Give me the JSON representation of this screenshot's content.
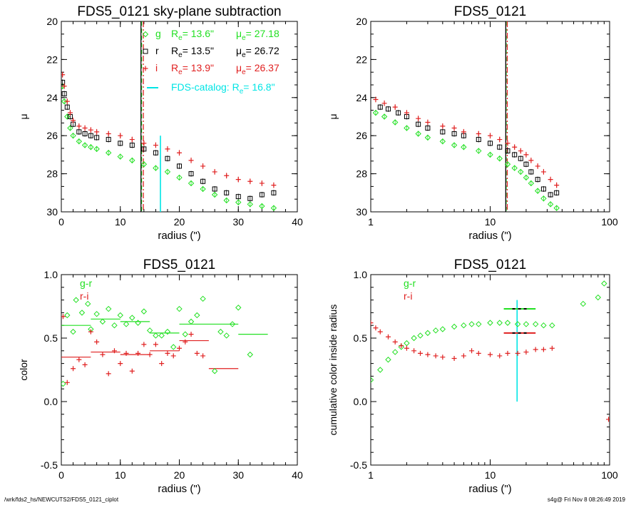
{
  "footer": {
    "left": "/wrk/fds2_hs/NEWCUTS2/FDS5_0121_ciplot",
    "right": "s4g@  Fri Nov  8 08:26:49 2019"
  },
  "colors": {
    "g": "#22e022",
    "r": "#000000",
    "i": "#e02020",
    "catalog": "#00e5e5"
  },
  "chart_data": [
    {
      "id": "panel1",
      "type": "scatter",
      "title": "FDS5_0121 sky-plane subtraction",
      "xlabel": "radius (\")",
      "ylabel": "μ",
      "xlim": [
        0,
        40
      ],
      "ylim": [
        30,
        20
      ],
      "xscale": "linear",
      "xticks": [
        0,
        10,
        20,
        30,
        40
      ],
      "yticks": [
        20,
        22,
        24,
        26,
        28,
        30
      ],
      "legend": [
        {
          "band": "g",
          "marker": "diamond",
          "Re": "13.6\"",
          "mue": "27.18"
        },
        {
          "band": "r",
          "marker": "square",
          "Re": "13.5\"",
          "mue": "26.72"
        },
        {
          "band": "i",
          "marker": "plus",
          "Re": "13.9\"",
          "mue": "26.37"
        }
      ],
      "catalog_label": "FDS-catalog: R",
      "catalog_value": "16.8\"",
      "vlines": [
        {
          "band": "g",
          "x": 13.6,
          "style": "dash"
        },
        {
          "band": "r",
          "x": 13.5,
          "style": "solid"
        },
        {
          "band": "i",
          "x": 13.9,
          "style": "dashdot"
        }
      ],
      "catalog_line": {
        "x": 16.8,
        "y": [
          30,
          26.0
        ]
      },
      "series": [
        {
          "band": "g",
          "x": [
            0.2,
            0.5,
            1,
            1.5,
            2,
            3,
            4,
            5,
            6,
            8,
            10,
            12,
            14,
            16,
            18,
            20,
            22,
            24,
            26,
            28,
            30,
            32,
            34,
            36
          ],
          "y": [
            23.4,
            24.2,
            25.0,
            25.6,
            26.0,
            26.3,
            26.5,
            26.6,
            26.7,
            26.9,
            27.1,
            27.3,
            27.5,
            27.7,
            27.9,
            28.2,
            28.5,
            28.8,
            29.1,
            29.4,
            29.5,
            29.6,
            29.7,
            29.8
          ]
        },
        {
          "band": "r",
          "x": [
            0.2,
            0.5,
            1,
            1.5,
            2,
            3,
            4,
            5,
            6,
            8,
            10,
            12,
            14,
            16,
            18,
            20,
            22,
            24,
            26,
            28,
            30,
            32,
            34,
            36
          ],
          "y": [
            23.2,
            23.8,
            24.5,
            25.0,
            25.4,
            25.8,
            25.9,
            26.0,
            26.1,
            26.2,
            26.4,
            26.5,
            26.7,
            26.9,
            27.2,
            27.6,
            28.0,
            28.4,
            28.8,
            29.0,
            29.2,
            29.3,
            29.1,
            29.0
          ]
        },
        {
          "band": "i",
          "x": [
            0.2,
            0.5,
            1,
            1.5,
            2,
            3,
            4,
            5,
            6,
            8,
            10,
            12,
            14,
            16,
            18,
            20,
            22,
            24,
            26,
            28,
            30,
            32,
            34,
            36
          ],
          "y": [
            22.8,
            23.4,
            24.2,
            24.8,
            25.2,
            25.5,
            25.6,
            25.7,
            25.8,
            25.9,
            26.0,
            26.2,
            26.4,
            26.5,
            26.7,
            26.9,
            27.3,
            27.6,
            27.9,
            28.1,
            28.3,
            28.4,
            28.5,
            28.6
          ]
        }
      ]
    },
    {
      "id": "panel2",
      "type": "scatter",
      "title": "FDS5_0121",
      "xlabel": "radius (\")",
      "ylabel": "μ",
      "xlim": [
        1,
        100
      ],
      "ylim": [
        30,
        20
      ],
      "xscale": "log",
      "xticks": [
        1,
        10,
        100
      ],
      "yticks": [
        20,
        22,
        24,
        26,
        28,
        30
      ],
      "vlines": [
        {
          "band": "g",
          "x": 13.6,
          "style": "dash"
        },
        {
          "band": "r",
          "x": 13.5,
          "style": "solid"
        },
        {
          "band": "i",
          "x": 13.9,
          "style": "dashdot"
        }
      ],
      "series": [
        {
          "band": "g",
          "x": [
            1.1,
            1.3,
            1.6,
            2,
            2.5,
            3,
            4,
            5,
            6,
            8,
            10,
            12,
            14,
            16,
            18,
            20,
            22,
            25,
            28,
            32,
            36
          ],
          "y": [
            24.8,
            25.0,
            25.3,
            25.6,
            25.9,
            26.1,
            26.3,
            26.5,
            26.6,
            26.8,
            27.0,
            27.2,
            27.5,
            27.7,
            27.9,
            28.2,
            28.5,
            28.9,
            29.3,
            29.6,
            29.8
          ]
        },
        {
          "band": "r",
          "x": [
            1.2,
            1.4,
            1.7,
            2,
            2.5,
            3,
            4,
            5,
            6,
            8,
            10,
            12,
            14,
            16,
            18,
            20,
            22,
            25,
            28,
            32,
            36
          ],
          "y": [
            24.5,
            24.6,
            24.8,
            25.0,
            25.4,
            25.6,
            25.8,
            25.9,
            26.0,
            26.2,
            26.4,
            26.6,
            26.8,
            27.0,
            27.2,
            27.5,
            27.9,
            28.3,
            28.8,
            29.1,
            29.0
          ]
        },
        {
          "band": "i",
          "x": [
            1.1,
            1.3,
            1.6,
            2,
            2.5,
            3,
            4,
            5,
            6,
            8,
            10,
            12,
            14,
            16,
            18,
            20,
            22,
            25,
            28,
            32,
            36
          ],
          "y": [
            24.1,
            24.3,
            24.5,
            24.8,
            25.1,
            25.3,
            25.5,
            25.6,
            25.8,
            25.9,
            26.0,
            26.2,
            26.4,
            26.6,
            26.8,
            27.0,
            27.3,
            27.6,
            27.9,
            28.3,
            28.6
          ]
        }
      ]
    },
    {
      "id": "panel3",
      "type": "scatter",
      "title": "FDS5_0121",
      "xlabel": "radius (\")",
      "ylabel": "color",
      "xlim": [
        0,
        40
      ],
      "ylim": [
        -0.5,
        1.0
      ],
      "xscale": "linear",
      "xticks": [
        0,
        10,
        20,
        30,
        40
      ],
      "yticks": [
        -0.5,
        0.0,
        0.5,
        1.0
      ],
      "legend": [
        {
          "band": "g",
          "label": "g-r"
        },
        {
          "band": "i",
          "label": "r-i"
        }
      ],
      "series": [
        {
          "name": "g-r",
          "band": "g",
          "marker": "diamond",
          "x": [
            0.3,
            1,
            2,
            2.5,
            3.5,
            4.5,
            5,
            6,
            7,
            8,
            9,
            10,
            11,
            12,
            13,
            14,
            15,
            16,
            17,
            18,
            19,
            20,
            21,
            22,
            23,
            24,
            26,
            27,
            28,
            29,
            30,
            32
          ],
          "y": [
            0.14,
            0.68,
            0.55,
            0.8,
            0.7,
            0.77,
            0.57,
            0.69,
            0.63,
            0.73,
            0.6,
            0.68,
            0.61,
            0.66,
            0.62,
            0.71,
            0.56,
            0.52,
            0.52,
            0.55,
            0.43,
            0.73,
            0.53,
            0.63,
            0.68,
            0.81,
            0.24,
            0.55,
            0.52,
            0.61,
            0.74,
            0.37
          ]
        },
        {
          "name": "r-i",
          "band": "i",
          "marker": "plus",
          "x": [
            0.3,
            1,
            2,
            3,
            4,
            5,
            6,
            7,
            8,
            9,
            10,
            11,
            12,
            13,
            14,
            15,
            16,
            17,
            18,
            19,
            20,
            21,
            22,
            23,
            24
          ],
          "y": [
            0.67,
            0.15,
            0.26,
            0.33,
            0.29,
            0.55,
            0.47,
            0.37,
            0.22,
            0.4,
            0.3,
            0.38,
            0.24,
            0.38,
            0.45,
            0.37,
            0.45,
            0.3,
            0.38,
            0.36,
            0.42,
            0.47,
            0.53,
            0.38,
            0.36
          ]
        }
      ],
      "hsegs": [
        {
          "band": "g",
          "segs": [
            [
              0,
              5,
              0.6
            ],
            [
              5,
              10,
              0.65
            ],
            [
              10,
              15,
              0.63
            ],
            [
              15,
              20,
              0.54
            ],
            [
              20,
              30,
              0.61
            ],
            [
              30,
              35,
              0.53
            ]
          ]
        },
        {
          "band": "i",
          "segs": [
            [
              0,
              5,
              0.35
            ],
            [
              5,
              10,
              0.39
            ],
            [
              10,
              15,
              0.37
            ],
            [
              15,
              20,
              0.4
            ],
            [
              20,
              25,
              0.48
            ],
            [
              25,
              30,
              0.26
            ]
          ]
        }
      ]
    },
    {
      "id": "panel4",
      "type": "scatter",
      "title": "FDS5_0121",
      "xlabel": "radius (\")",
      "ylabel": "cumulative color inside radius",
      "xlim": [
        1,
        100
      ],
      "ylim": [
        -0.5,
        1.0
      ],
      "xscale": "log",
      "xticks": [
        1,
        10,
        100
      ],
      "yticks": [
        -0.5,
        0.0,
        0.5,
        1.0
      ],
      "legend": [
        {
          "band": "g",
          "label": "g-r"
        },
        {
          "band": "i",
          "label": "r-i"
        }
      ],
      "catalog_line": {
        "x": 16.8,
        "y": [
          0.0,
          0.8
        ]
      },
      "errbars": [
        {
          "band": "g",
          "x": [
            13,
            24
          ],
          "y": 0.73
        },
        {
          "band": "i",
          "x": [
            13,
            24
          ],
          "y": 0.54
        }
      ],
      "series": [
        {
          "name": "g-r",
          "band": "g",
          "marker": "diamond",
          "x": [
            1.0,
            1.2,
            1.4,
            1.6,
            1.8,
            2,
            2.3,
            2.6,
            3,
            3.5,
            4,
            5,
            6,
            7,
            8,
            10,
            12,
            14,
            17,
            20,
            24,
            28,
            33,
            60,
            80,
            90
          ],
          "y": [
            0.17,
            0.25,
            0.33,
            0.39,
            0.43,
            0.46,
            0.5,
            0.52,
            0.54,
            0.56,
            0.57,
            0.59,
            0.6,
            0.61,
            0.61,
            0.62,
            0.62,
            0.62,
            0.61,
            0.61,
            0.61,
            0.6,
            0.6,
            0.77,
            0.82,
            0.93
          ]
        },
        {
          "name": "r-i",
          "band": "i",
          "marker": "plus",
          "x": [
            1.0,
            1.1,
            1.2,
            1.4,
            1.6,
            1.8,
            2,
            2.3,
            2.6,
            3,
            3.5,
            4,
            5,
            6,
            7,
            8,
            10,
            12,
            14,
            17,
            20,
            24,
            28,
            33,
            98
          ],
          "y": [
            0.62,
            0.58,
            0.55,
            0.51,
            0.47,
            0.44,
            0.42,
            0.4,
            0.38,
            0.37,
            0.36,
            0.35,
            0.34,
            0.36,
            0.4,
            0.38,
            0.37,
            0.36,
            0.38,
            0.38,
            0.39,
            0.41,
            0.41,
            0.42,
            -0.14
          ]
        }
      ]
    }
  ]
}
